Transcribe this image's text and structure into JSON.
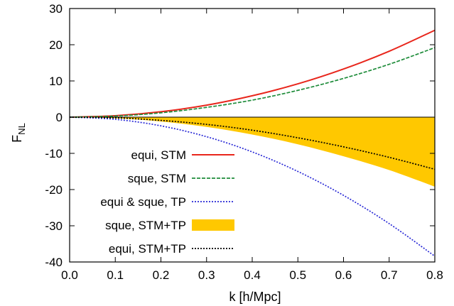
{
  "chart_data": {
    "type": "line",
    "xlabel": "k [h/Mpc]",
    "ylabel_main": "F",
    "ylabel_sub": "NL",
    "xlim": [
      0,
      0.8
    ],
    "ylim": [
      -40,
      30
    ],
    "x_ticks": [
      "0.0",
      "0.1",
      "0.2",
      "0.3",
      "0.4",
      "0.5",
      "0.6",
      "0.7",
      "0.8"
    ],
    "y_ticks": [
      "30",
      "20",
      "10",
      "0",
      "-10",
      "-20",
      "-30",
      "-40"
    ],
    "x_tick_values": [
      0,
      0.1,
      0.2,
      0.3,
      0.4,
      0.5,
      0.6,
      0.7,
      0.8
    ],
    "y_tick_values": [
      30,
      20,
      10,
      0,
      -10,
      -20,
      -30,
      -40
    ],
    "grid": false,
    "legend_position": "left-middle",
    "x": [
      0,
      0.1,
      0.2,
      0.3,
      0.4,
      0.5,
      0.6,
      0.7,
      0.8
    ],
    "series": [
      {
        "name": "equi, STM",
        "style": "solid",
        "color": "#e8261c",
        "values": [
          0,
          0.4,
          1.5,
          3.3,
          5.9,
          9.2,
          13.3,
          18.2,
          24.0
        ]
      },
      {
        "name": "sque, STM",
        "style": "dashed",
        "color": "#1e8c3a",
        "values": [
          0,
          0.3,
          1.2,
          2.7,
          4.7,
          7.4,
          10.7,
          14.6,
          19.2
        ]
      },
      {
        "name": "equi & sque, TP",
        "style": "dotted",
        "color": "#2a2ad6",
        "values": [
          0,
          -0.6,
          -2.4,
          -5.4,
          -9.6,
          -15.0,
          -21.6,
          -29.4,
          -38.4
        ]
      },
      {
        "name": "sque, STM+TP",
        "style": "band",
        "color": "#ffc800",
        "values_upper": [
          0,
          0,
          0,
          0,
          0,
          0,
          0,
          0,
          0
        ],
        "values_lower": [
          0,
          -0.3,
          -1.2,
          -2.7,
          -4.8,
          -7.5,
          -10.8,
          -14.6,
          -19.2
        ]
      },
      {
        "name": "equi, STM+TP",
        "style": "dotted",
        "color": "#000000",
        "values": [
          0,
          -0.2,
          -0.9,
          -2.0,
          -3.6,
          -5.7,
          -8.2,
          -11.1,
          -14.4
        ]
      }
    ]
  }
}
